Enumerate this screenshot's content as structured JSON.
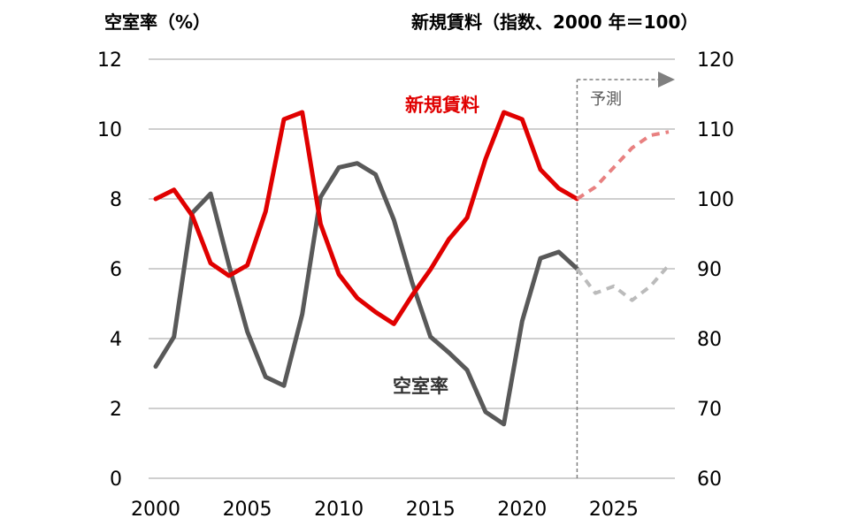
{
  "chart_data": {
    "type": "line",
    "left_axis_title": "空室率（%）",
    "right_axis_title": "新規賃料（指数、2000 年＝100）",
    "y_left": {
      "min": 0,
      "max": 12,
      "ticks": [
        "0",
        "2",
        "4",
        "6",
        "8",
        "10",
        "12"
      ]
    },
    "y_right": {
      "min": 60,
      "max": 120,
      "ticks": [
        "60",
        "70",
        "80",
        "90",
        "100",
        "110",
        "120"
      ]
    },
    "x_axis": {
      "min": 2000,
      "max": 2028,
      "ticks": [
        "2000",
        "2005",
        "2010",
        "2015",
        "2020",
        "2025"
      ]
    },
    "forecast_start": 2023,
    "forecast_label": "予測",
    "grid": true,
    "colors": {
      "rent": "#e00000",
      "rent_forecast": "#e88080",
      "vacancy": "#595959",
      "vacancy_forecast": "#bbbbbb",
      "grid": "#9f9f9f",
      "forecast_marker": "#7f7f7f"
    },
    "series": [
      {
        "name": "新規賃料",
        "axis": "right",
        "x": [
          2000,
          2001,
          2002,
          2003,
          2004,
          2005,
          2006,
          2007,
          2008,
          2009,
          2010,
          2011,
          2012,
          2013,
          2014,
          2015,
          2016,
          2017,
          2018,
          2019,
          2020,
          2021,
          2022,
          2023
        ],
        "values": [
          100,
          101.3,
          97.6,
          90.8,
          89,
          90.5,
          98.2,
          111.4,
          112.4,
          96.4,
          89.2,
          85.8,
          83.8,
          82.1,
          86.2,
          89.9,
          94.2,
          97.3,
          105.7,
          112.4,
          111.4,
          104.2,
          101.5,
          100
        ],
        "forecast_x": [
          2023,
          2024,
          2025,
          2026,
          2027,
          2028
        ],
        "forecast_values": [
          100,
          101.7,
          104.5,
          107.3,
          109.1,
          109.6
        ]
      },
      {
        "name": "空室率",
        "axis": "left",
        "x": [
          2000,
          2001,
          2002,
          2003,
          2004,
          2005,
          2006,
          2007,
          2008,
          2009,
          2010,
          2011,
          2012,
          2013,
          2014,
          2015,
          2016,
          2017,
          2018,
          2019,
          2020,
          2021,
          2022,
          2023
        ],
        "values": [
          3.2,
          4.05,
          7.6,
          8.15,
          6.1,
          4.2,
          2.9,
          2.65,
          4.7,
          8.05,
          8.9,
          9.02,
          8.7,
          7.4,
          5.6,
          4.05,
          3.6,
          3.1,
          1.9,
          1.55,
          4.5,
          6.3,
          6.48,
          6
        ],
        "forecast_x": [
          2023,
          2024,
          2025,
          2026,
          2027,
          2028
        ],
        "forecast_values": [
          6,
          5.3,
          5.5,
          5.1,
          5.5,
          6.1
        ]
      }
    ]
  }
}
